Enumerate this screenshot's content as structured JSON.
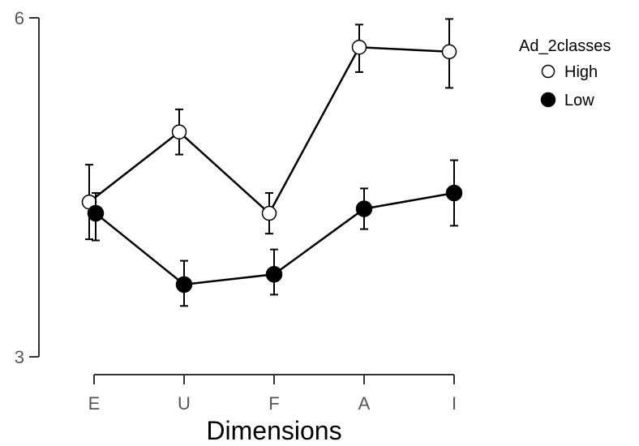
{
  "chart_data": {
    "type": "line",
    "categories": [
      "E",
      "U",
      "F",
      "A",
      "I"
    ],
    "xlabel": "Dimensions",
    "ylabel": "",
    "ylim": [
      3,
      6
    ],
    "yticks": [
      "3",
      "6"
    ],
    "grid": false,
    "legend": {
      "title": "Ad_2classes",
      "placement": "top-right"
    },
    "series": [
      {
        "name": "High",
        "marker": "open-circle",
        "values": [
          4.37,
          4.99,
          4.27,
          5.74,
          5.7
        ],
        "err_low": [
          4.04,
          4.79,
          4.09,
          5.52,
          5.38
        ],
        "err_high": [
          4.7,
          5.19,
          4.45,
          5.94,
          5.99
        ]
      },
      {
        "name": "Low",
        "marker": "filled-circle",
        "values": [
          4.27,
          3.64,
          3.73,
          4.31,
          4.45
        ],
        "err_low": [
          4.03,
          3.45,
          3.55,
          4.13,
          4.16
        ],
        "err_high": [
          4.45,
          3.85,
          3.95,
          4.49,
          4.74
        ]
      }
    ],
    "colors": {
      "line": "#000000",
      "axis": "#333333",
      "open_fill": "#ffffff",
      "filled_fill": "#000000"
    }
  }
}
